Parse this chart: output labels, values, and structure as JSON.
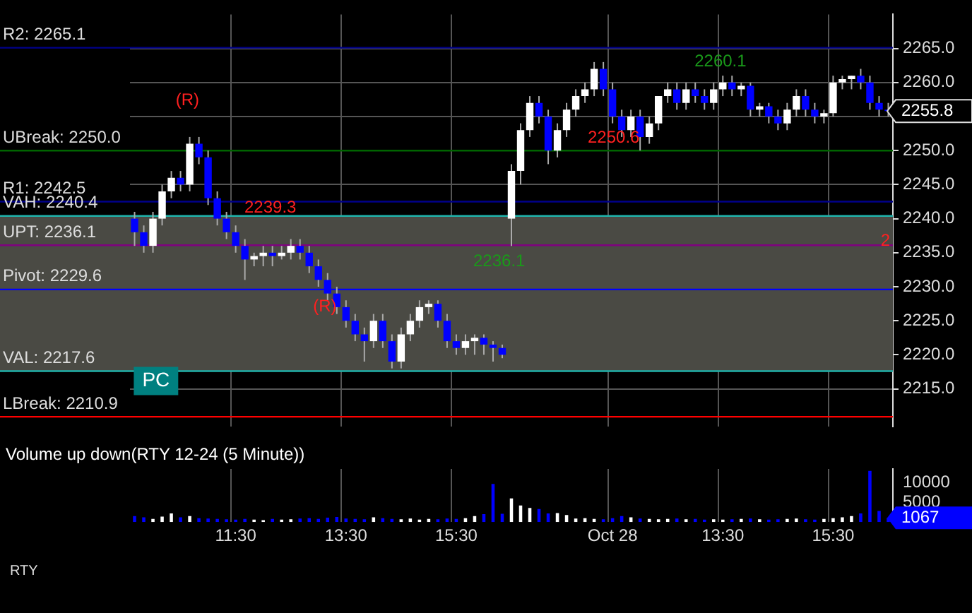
{
  "chart_data": [
    {
      "type": "candlestick",
      "categories": [
        null,
        null,
        null,
        null,
        null,
        null,
        null,
        null,
        null,
        null,
        null,
        null,
        null,
        null,
        null,
        null,
        null,
        null,
        null,
        null,
        null,
        null,
        null,
        null,
        null,
        null,
        null,
        null,
        null,
        null,
        null,
        null,
        null,
        null,
        null,
        null,
        null,
        null,
        null,
        null,
        null,
        null,
        null,
        null,
        null,
        null,
        null,
        null,
        null,
        null,
        null,
        null,
        null,
        null,
        null,
        null,
        null,
        null,
        null,
        null,
        null,
        null,
        null,
        null,
        null,
        null,
        null,
        null,
        null,
        null,
        null,
        null,
        null,
        null,
        null,
        null,
        null,
        null,
        null,
        null,
        null,
        null,
        null
      ],
      "ohlc": [
        [
          2240,
          2241,
          2236,
          2238
        ],
        [
          2238,
          2239,
          2235,
          2236
        ],
        [
          2236,
          2241,
          2235,
          2240
        ],
        [
          2240,
          2245,
          2239,
          2244
        ],
        [
          2244,
          2247,
          2243,
          2246
        ],
        [
          2246,
          2247,
          2244,
          2245
        ],
        [
          2245,
          2252,
          2244,
          2251
        ],
        [
          2251,
          2252,
          2248,
          2249
        ],
        [
          2249,
          2250,
          2242,
          2243
        ],
        [
          2243,
          2244,
          2239,
          2240
        ],
        [
          2240,
          2241,
          2237,
          2238
        ],
        [
          2238,
          2239,
          2235,
          2236
        ],
        [
          2236,
          2237,
          2231,
          2234
        ],
        [
          2234,
          2235,
          2233,
          2234.5
        ],
        [
          2234.5,
          2236,
          2233,
          2235
        ],
        [
          2235,
          2236,
          2233,
          2234.5
        ],
        [
          2234.5,
          2236,
          2234,
          2235
        ],
        [
          2235,
          2237,
          2234,
          2236
        ],
        [
          2236,
          2237,
          2234,
          2235
        ],
        [
          2235,
          2236,
          2232,
          2233
        ],
        [
          2233,
          2234,
          2230,
          2231
        ],
        [
          2231,
          2232,
          2228,
          2229
        ],
        [
          2229,
          2230,
          2226,
          2227
        ],
        [
          2227,
          2228,
          2224,
          2225
        ],
        [
          2225,
          2226,
          2222,
          2223
        ],
        [
          2223,
          2224,
          2219,
          2222
        ],
        [
          2222,
          2226,
          2221,
          2225
        ],
        [
          2225,
          2226,
          2221,
          2222
        ],
        [
          2222,
          2223,
          2218,
          2219
        ],
        [
          2219,
          2224,
          2218,
          2223
        ],
        [
          2223,
          2226,
          2222,
          2225
        ],
        [
          2225,
          2228,
          2224,
          2227
        ],
        [
          2227,
          2228,
          2226,
          2227.5
        ],
        [
          2227.5,
          2228,
          2224,
          2225
        ],
        [
          2225,
          2226,
          2221,
          2222
        ],
        [
          2222,
          2223,
          2220,
          2221
        ],
        [
          2221,
          2223,
          2220,
          2222
        ],
        [
          2222,
          2223,
          2220,
          2222.5
        ],
        [
          2222.5,
          2223,
          2220,
          2221.5
        ],
        [
          2221.5,
          2222,
          2219,
          2221
        ],
        [
          2221,
          2221.5,
          2219.5,
          2220
        ],
        [
          2240,
          2248,
          2236,
          2247
        ],
        [
          2247,
          2254,
          2245,
          2253
        ],
        [
          2253,
          2258,
          2252,
          2257
        ],
        [
          2257,
          2258,
          2254,
          2255
        ],
        [
          2255,
          2256,
          2248,
          2250
        ],
        [
          2250,
          2254,
          2249,
          2253
        ],
        [
          2253,
          2257,
          2252,
          2256
        ],
        [
          2256,
          2259,
          2255,
          2258
        ],
        [
          2258,
          2260,
          2257,
          2259
        ],
        [
          2259,
          2263,
          2258,
          2262
        ],
        [
          2262,
          2263,
          2258,
          2259
        ],
        [
          2259,
          2260,
          2254,
          2255
        ],
        [
          2255,
          2256,
          2252,
          2253
        ],
        [
          2253,
          2256,
          2252,
          2255
        ],
        [
          2255,
          2256,
          2250,
          2252
        ],
        [
          2252,
          2255,
          2251,
          2254
        ],
        [
          2254,
          2258,
          2253,
          2258
        ],
        [
          2258,
          2260,
          2257,
          2259
        ],
        [
          2259,
          2260,
          2256,
          2257
        ],
        [
          2257,
          2260,
          2256,
          2259
        ],
        [
          2259,
          2260,
          2257,
          2258
        ],
        [
          2258,
          2259,
          2256,
          2257
        ],
        [
          2257,
          2260,
          2256,
          2259
        ],
        [
          2259,
          2261,
          2258,
          2260
        ],
        [
          2260,
          2261,
          2258,
          2259
        ],
        [
          2259,
          2260,
          2258,
          2259.5
        ],
        [
          2259.5,
          2260,
          2255,
          2256
        ],
        [
          2256,
          2257,
          2255,
          2256.5
        ],
        [
          2256.5,
          2257,
          2254,
          2255
        ],
        [
          2255,
          2256,
          2253,
          2254
        ],
        [
          2254,
          2257,
          2253,
          2256
        ],
        [
          2256,
          2259,
          2255,
          2258
        ],
        [
          2258,
          2259,
          2255,
          2256
        ],
        [
          2256,
          2257,
          2254,
          2255
        ],
        [
          2255,
          2256,
          2254,
          2255.5
        ],
        [
          2255.5,
          2261,
          2255,
          2260
        ],
        [
          2260,
          2261,
          2259,
          2260.5
        ],
        [
          2260.5,
          2261,
          2259,
          2261
        ],
        [
          2261,
          2262,
          2259,
          2260
        ],
        [
          2260,
          2261,
          2256,
          2257
        ],
        [
          2257,
          2258,
          2255,
          2256
        ],
        [
          2256,
          2257,
          2255,
          2255.8
        ]
      ],
      "colors": [
        "#0000ff",
        "#0000ff",
        "#ffffff",
        "#ffffff",
        "#ffffff",
        "#0000ff",
        "#ffffff",
        "#0000ff",
        "#0000ff",
        "#0000ff",
        "#0000ff",
        "#0000ff",
        "#0000ff",
        "#ffffff",
        "#ffffff",
        "#0000ff",
        "#ffffff",
        "#ffffff",
        "#0000ff",
        "#0000ff",
        "#0000ff",
        "#0000ff",
        "#0000ff",
        "#0000ff",
        "#0000ff",
        "#0000ff",
        "#ffffff",
        "#0000ff",
        "#0000ff",
        "#ffffff",
        "#ffffff",
        "#ffffff",
        "#ffffff",
        "#0000ff",
        "#0000ff",
        "#0000ff",
        "#ffffff",
        "#ffffff",
        "#0000ff",
        "#0000ff",
        "#0000ff",
        "#ffffff",
        "#ffffff",
        "#ffffff",
        "#0000ff",
        "#0000ff",
        "#ffffff",
        "#ffffff",
        "#ffffff",
        "#ffffff",
        "#ffffff",
        "#0000ff",
        "#0000ff",
        "#0000ff",
        "#ffffff",
        "#0000ff",
        "#ffffff",
        "#ffffff",
        "#ffffff",
        "#0000ff",
        "#ffffff",
        "#0000ff",
        "#0000ff",
        "#ffffff",
        "#ffffff",
        "#0000ff",
        "#ffffff",
        "#0000ff",
        "#ffffff",
        "#0000ff",
        "#0000ff",
        "#ffffff",
        "#ffffff",
        "#0000ff",
        "#0000ff",
        "#ffffff",
        "#ffffff",
        "#ffffff",
        "#ffffff",
        "#0000ff",
        "#0000ff",
        "#0000ff",
        "#0000ff"
      ],
      "ylim": [
        2209.5,
        2270
      ],
      "yticks": [
        {
          "value": 2215,
          "label": "2215.0"
        },
        {
          "value": 2220,
          "label": "2220.0"
        },
        {
          "value": 2225,
          "label": "2225.0"
        },
        {
          "value": 2230,
          "label": "2230.0"
        },
        {
          "value": 2235,
          "label": "2235.0"
        },
        {
          "value": 2240,
          "label": "2240.0"
        },
        {
          "value": 2245,
          "label": "2245.0"
        },
        {
          "value": 2250,
          "label": "2250.0"
        },
        {
          "value": 2255,
          "label": null
        },
        {
          "value": 2260,
          "label": "2260.0"
        },
        {
          "value": 2265,
          "label": "2265.0"
        }
      ],
      "tick_labels": "y",
      "grid": true,
      "legend": false,
      "bands": [
        {
          "axis": "y",
          "from": 2217.6,
          "to": 2240.4,
          "color": "#4a4a44"
        }
      ],
      "ref_lines": [
        {
          "axis": "y",
          "value": 2265.1,
          "label": "R2: 2265.1",
          "color": "#00008b"
        },
        {
          "axis": "y",
          "value": 2250.0,
          "label": "UBreak: 2250.0",
          "color": "#006400"
        },
        {
          "axis": "y",
          "value": 2242.5,
          "label": "R1: 2242.5",
          "color": "#00008b"
        },
        {
          "axis": "y",
          "value": 2240.4,
          "label": "VAH: 2240.4",
          "color": "#20b2aa"
        },
        {
          "axis": "y",
          "value": 2236.1,
          "label": "UPT: 2236.1",
          "color": "#800080"
        },
        {
          "axis": "y",
          "value": 2229.6,
          "label": "Pivot: 2229.6",
          "color": "#0000ff"
        },
        {
          "axis": "y",
          "value": 2217.6,
          "label": "VAL: 2217.6",
          "color": "#20b2aa"
        },
        {
          "axis": "y",
          "value": 2210.9,
          "label": "LBreak: 2210.9",
          "color": "#ff0000"
        }
      ],
      "annotations": [
        "2239.3",
        "2250.6",
        "2260.1",
        "2236.1",
        "(R)",
        "(R)",
        "2",
        "2255.8",
        "PC"
      ]
    },
    {
      "type": "bar",
      "title": "Volume up down(RTY 12-24 (5 Minute))",
      "categories": [
        null,
        null,
        null,
        null,
        null,
        null,
        null,
        null,
        null,
        null,
        null,
        "11:30",
        null,
        null,
        null,
        null,
        null,
        null,
        null,
        null,
        null,
        null,
        null,
        "13:30",
        null,
        null,
        null,
        null,
        null,
        null,
        null,
        null,
        null,
        null,
        null,
        "15:30",
        null,
        null,
        null,
        null,
        null,
        null,
        null,
        null,
        null,
        null,
        null,
        null,
        null,
        null,
        null,
        null,
        "Oct 28",
        null,
        null,
        null,
        null,
        null,
        null,
        null,
        null,
        null,
        null,
        null,
        "13:30",
        null,
        null,
        null,
        null,
        null,
        null,
        null,
        null,
        null,
        null,
        null,
        "15:30",
        null,
        null,
        null,
        null,
        null,
        null
      ],
      "values": [
        1500,
        1200,
        800,
        1400,
        2200,
        1200,
        1500,
        1000,
        900,
        800,
        700,
        600,
        800,
        600,
        500,
        800,
        600,
        700,
        900,
        1000,
        800,
        1100,
        1300,
        900,
        800,
        700,
        1200,
        1000,
        800,
        700,
        900,
        600,
        800,
        700,
        900,
        800,
        1000,
        1500,
        2000,
        9700,
        2100,
        6000,
        4200,
        3600,
        3300,
        2200,
        2300,
        1800,
        900,
        1000,
        800,
        700,
        1000,
        1500,
        1200,
        900,
        800,
        700,
        800,
        900,
        700,
        800,
        600,
        700,
        600,
        700,
        800,
        900,
        700,
        600,
        700,
        800,
        900,
        700,
        600,
        800,
        1000,
        1200,
        1500,
        2200,
        13000,
        2800,
        1067
      ],
      "colors": [
        "#0000ff",
        "#0000ff",
        "#ffffff",
        "#ffffff",
        "#ffffff",
        "#0000ff",
        "#ffffff",
        "#0000ff",
        "#0000ff",
        "#0000ff",
        "#0000ff",
        "#0000ff",
        "#0000ff",
        "#ffffff",
        "#ffffff",
        "#0000ff",
        "#ffffff",
        "#ffffff",
        "#0000ff",
        "#0000ff",
        "#0000ff",
        "#0000ff",
        "#0000ff",
        "#0000ff",
        "#0000ff",
        "#0000ff",
        "#ffffff",
        "#0000ff",
        "#0000ff",
        "#ffffff",
        "#ffffff",
        "#ffffff",
        "#ffffff",
        "#0000ff",
        "#0000ff",
        "#0000ff",
        "#ffffff",
        "#ffffff",
        "#0000ff",
        "#0000ff",
        "#0000ff",
        "#ffffff",
        "#ffffff",
        "#ffffff",
        "#0000ff",
        "#0000ff",
        "#ffffff",
        "#ffffff",
        "#ffffff",
        "#ffffff",
        "#ffffff",
        "#0000ff",
        "#0000ff",
        "#0000ff",
        "#ffffff",
        "#0000ff",
        "#ffffff",
        "#ffffff",
        "#ffffff",
        "#0000ff",
        "#ffffff",
        "#0000ff",
        "#0000ff",
        "#ffffff",
        "#ffffff",
        "#0000ff",
        "#ffffff",
        "#0000ff",
        "#ffffff",
        "#0000ff",
        "#0000ff",
        "#ffffff",
        "#ffffff",
        "#0000ff",
        "#0000ff",
        "#ffffff",
        "#ffffff",
        "#ffffff",
        "#ffffff",
        "#0000ff",
        "#0000ff",
        "#0000ff",
        "#0000ff"
      ],
      "ylim": [
        0,
        13500
      ],
      "yticks": [
        5000,
        10000
      ],
      "grid": "x",
      "legend": false,
      "annotations": [
        "1067",
        "RTY"
      ]
    }
  ]
}
